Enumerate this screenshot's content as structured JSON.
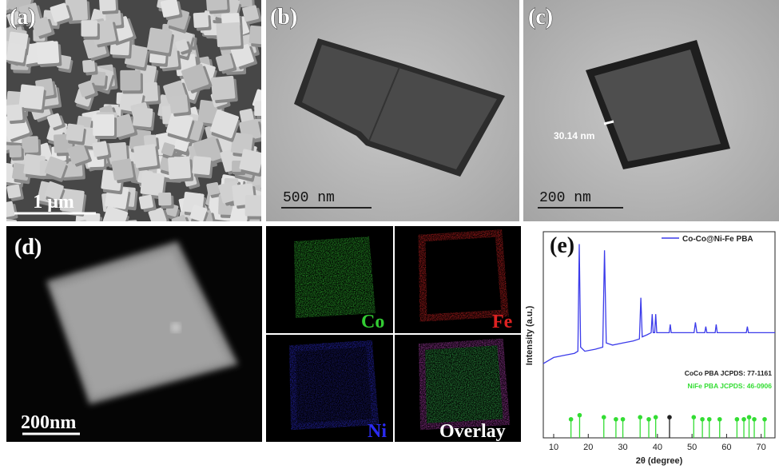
{
  "panels": {
    "a": {
      "label": "(a)",
      "scale_bar": "1 μm"
    },
    "b": {
      "label": "(b)",
      "scale_bar": "500 nm"
    },
    "c": {
      "label": "(c)",
      "scale_bar": "200 nm",
      "annotation": "30.14 nm"
    },
    "d": {
      "label": "(d)",
      "scale_bar": "200nm"
    },
    "maps": [
      "Co",
      "Fe",
      "Ni",
      "Overlay"
    ]
  },
  "chart_data": {
    "type": "line",
    "panel_label": "(e)",
    "xlabel": "2θ (degree)",
    "ylabel": "Intensity (a.u.)",
    "xlim": [
      7,
      74
    ],
    "ylim": [
      0,
      100
    ],
    "xticks": [
      10,
      20,
      30,
      40,
      50,
      60,
      70
    ],
    "series": [
      {
        "name": "Co-Co@Ni-Fe PBA",
        "color": "#3b3bea",
        "x": [
          7,
          10,
          13,
          16,
          17,
          17.4,
          17.8,
          19,
          22,
          24.2,
          24.7,
          25.2,
          27,
          30,
          33,
          34.8,
          35.2,
          35.6,
          37,
          38.2,
          38.5,
          38.8,
          39.2,
          39.5,
          39.8,
          41,
          43.4,
          43.7,
          44,
          47,
          50.6,
          51,
          51.4,
          53.7,
          54,
          54.3,
          56.7,
          57,
          57.3,
          60,
          63,
          65.7,
          66,
          66.3,
          70,
          74
        ],
        "values": [
          36,
          39,
          40,
          41,
          42,
          94,
          44,
          42,
          43,
          44,
          91,
          46,
          45,
          46,
          47,
          48,
          68,
          49,
          50,
          51,
          60,
          51,
          51,
          60,
          51,
          51,
          51,
          55,
          51,
          51,
          51,
          56,
          51,
          51,
          54,
          51,
          51,
          55,
          51,
          51,
          51,
          51,
          54,
          51,
          51,
          51
        ]
      }
    ],
    "references": [
      {
        "name": "CoCo PBA JCPDS: 77-1161",
        "color": "#222222",
        "x": [
          43.5
        ],
        "values": [
          10
        ]
      },
      {
        "name": "NiFe PBA JCPDS: 46-0906",
        "color": "#33dd33",
        "x": [
          15,
          17.5,
          24.5,
          28,
          30,
          35,
          37.5,
          39.5,
          50.5,
          53,
          55,
          58,
          63,
          65,
          66.5,
          68,
          71
        ],
        "values": [
          9,
          11,
          10,
          9,
          9,
          10,
          9,
          10,
          10,
          9,
          9,
          9,
          9,
          9,
          10,
          9,
          9
        ]
      }
    ]
  }
}
